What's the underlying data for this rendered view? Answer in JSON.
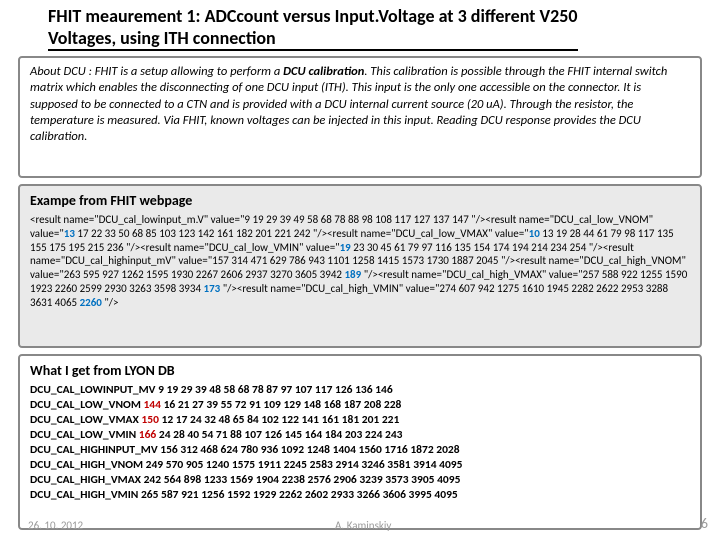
{
  "title": {
    "line1": "FHIT meaurement 1: ADCcount versus Input.Voltage at 3 different V250",
    "line2": "Voltages, using ITH connection"
  },
  "about": {
    "prefix": "About DCU : FHIT is a setup allowing to perform a ",
    "bold": "DCU calibration",
    "rest": ". This calibration is possible through the FHIT internal switch matrix which enables the disconnecting of one DCU input (ITH). This input is the only one accessible on the connector. It is supposed to be connected to a CTN and is provided with a DCU internal current source (20 uA). Through the resistor, the temperature is measured. Via FHIT, known voltages can be injected in this input. Reading DCU response provides the DCU calibration."
  },
  "example": {
    "heading": "Exampe from FHIT webpage",
    "lines": [
      {
        "pre": "<result name=\"DCU_cal_lowinput_m.V\" value=\"9 19 29 39 49 58 68 78 88 98 108 117 127 137 147 \"/><result name=\"DCU_cal_low_VNOM\" value=\"",
        "hl": "13",
        "post": " 17 22 33 50 68 85 103 123 142 161 182 201 221 242 \"/><result name=\"DCU_cal_low_VMAX\" value=\""
      },
      {
        "pre": "",
        "hl": "10",
        "post": " 13 19 28 44 61 79 98 117 135 155 175 195 215 236 \"/><result name=\"DCU_cal_low_VMIN\" value=\""
      },
      {
        "pre": "",
        "hl": "19",
        "post": " 23 30 45 61 79 97 116 135 154 174 194 214 234 254 \"/><result name=\"DCU_cal_highinput_mV\" value=\"157 314 471 629 786 943 1101 1258 1415 1573 1730 1887 2045 \"/><result name=\"DCU_cal_high_VNOM\" value=\"263 595 927 1262 1595 1930 2267 2606 2937 3270 3605 3942 "
      },
      {
        "pre": "",
        "hl": "189",
        "post": " \"/><result name=\"DCU_cal_high_VMAX\" value=\"257 588 922 1255 1590 1923 2260 2599 2930 3263 3598 3934 "
      },
      {
        "pre": "",
        "hl": "173",
        "post": " \"/><result name=\"DCU_cal_high_VMIN\" value=\"274 607 942 1275 1610 1945 2282 2622 2953 3288 3631 4065 "
      },
      {
        "pre": "",
        "hl": "2260",
        "post": " \"/>"
      }
    ]
  },
  "lyon": {
    "heading": "What I get from LYON DB",
    "rows": [
      {
        "label": "DCU_CAL_LOWINPUT_MV",
        "hl": "",
        "vals": "9 19 29 39 48 58 68 78 87 97 107 117 126 136 146"
      },
      {
        "label": "DCU_CAL_LOW_VNOM",
        "hl": "144",
        "vals": " 16 21 27 39 55 72 91 109 129 148 168 187 208 228"
      },
      {
        "label": "DCU_CAL_LOW_VMAX",
        "hl": "150",
        "vals": " 12 17 24 32 48 65 84 102 122 141 161 181 201 221"
      },
      {
        "label": "DCU_CAL_LOW_VMIN",
        "hl": "166",
        "vals": " 24 28 40 54 71 88 107 126 145 164 184 203 224 243"
      },
      {
        "label": "DCU_CAL_HIGHINPUT_MV",
        "hl": "",
        "vals": "156 312 468 624 780 936 1092 1248 1404 1560 1716 1872 2028"
      },
      {
        "label": "DCU_CAL_HIGH_VNOM",
        "hl": "",
        "vals": "249 570 905 1240 1575 1911 2245 2583 2914 3246 3581 3914 4095"
      },
      {
        "label": "DCU_CAL_HIGH_VMAX",
        "hl": "",
        "vals": "242 564 898 1233 1569 1904 2238 2576 2906 3239 3573 3905 4095"
      },
      {
        "label": "DCU_CAL_HIGH_VMIN",
        "hl": "",
        "vals": "265 587 921 1256 1592 1929 2262 2602 2933 3266 3606 3995 4095"
      }
    ]
  },
  "footer": {
    "date": "26. 10. 2012",
    "author": "A. Kaminskiy",
    "page": "6"
  },
  "colors": {
    "hl_blue": "#0070c0",
    "hl_red": "#c00000",
    "box_border": "#888888",
    "box_grey_bg": "#eaeaea",
    "footer_grey": "#9a9a9a"
  }
}
